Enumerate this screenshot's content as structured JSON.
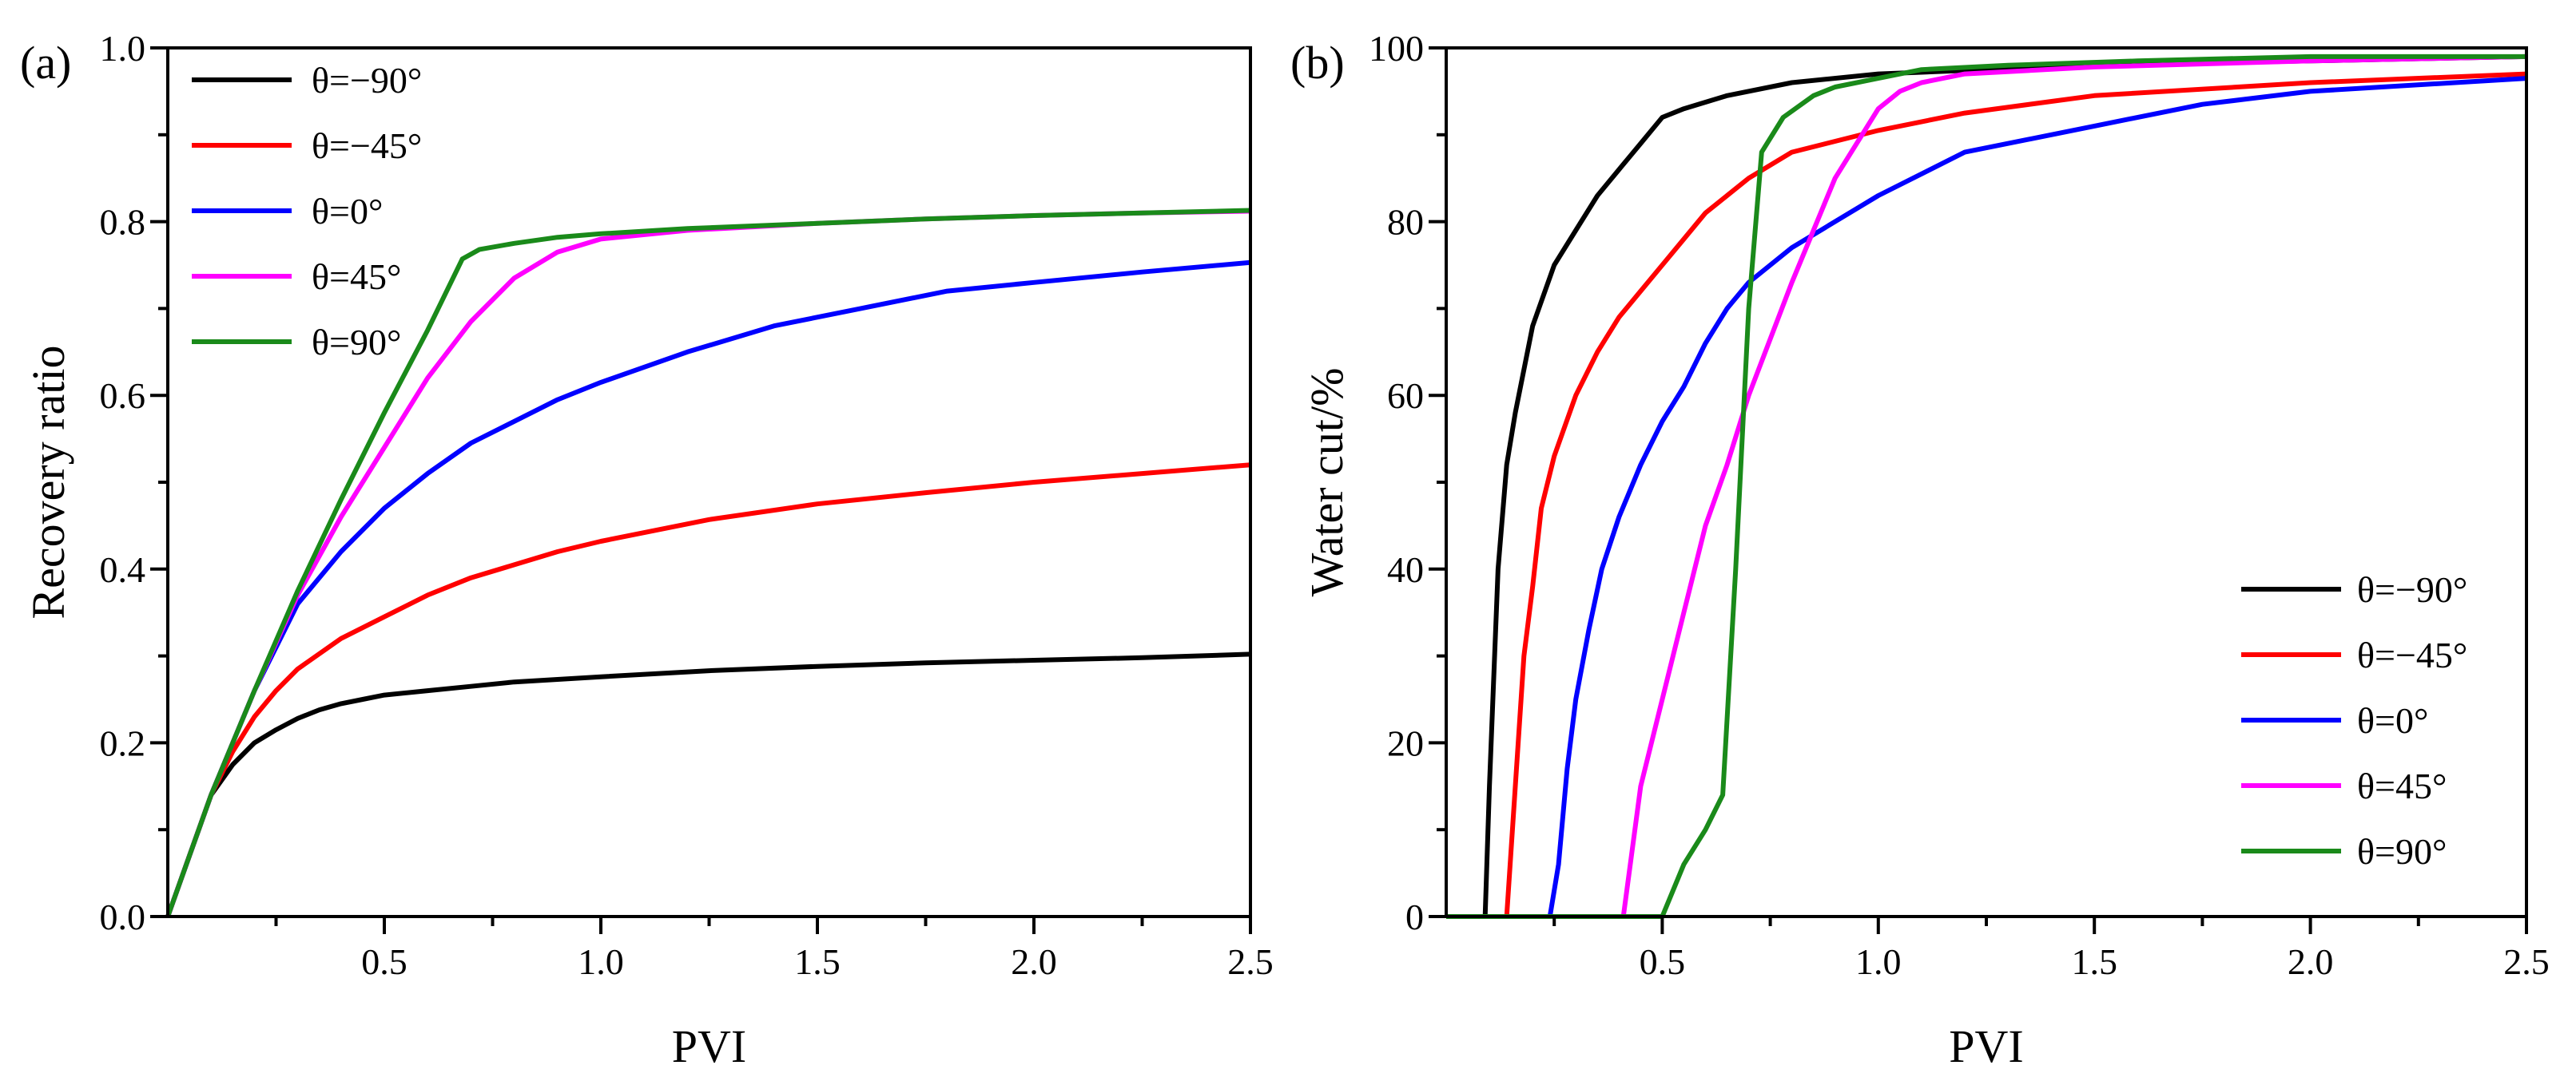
{
  "chart_data": [
    {
      "type": "line",
      "panel_label": "(a)",
      "xlabel": "PVI",
      "ylabel": "Recovery ratio",
      "xlim": [
        0,
        2.5
      ],
      "ylim": [
        0,
        1.0
      ],
      "xticks": [
        "0.5",
        "1.0",
        "1.5",
        "2.0",
        "2.5"
      ],
      "yticks": [
        "0.0",
        "0.2",
        "0.4",
        "0.6",
        "0.8",
        "1.0"
      ],
      "legend_position": "top-left",
      "series": [
        {
          "name": "θ=−90°",
          "color": "#000000",
          "x": [
            0,
            0.05,
            0.1,
            0.15,
            0.2,
            0.25,
            0.3,
            0.35,
            0.4,
            0.45,
            0.5,
            0.6,
            0.7,
            0.8,
            1.0,
            1.25,
            1.5,
            1.75,
            2.0,
            2.25,
            2.5
          ],
          "y": [
            0,
            0.07,
            0.14,
            0.175,
            0.2,
            0.215,
            0.228,
            0.238,
            0.245,
            0.25,
            0.255,
            0.26,
            0.265,
            0.27,
            0.276,
            0.283,
            0.288,
            0.292,
            0.295,
            0.298,
            0.302
          ]
        },
        {
          "name": "θ=−45°",
          "color": "#ff0000",
          "x": [
            0,
            0.05,
            0.1,
            0.15,
            0.2,
            0.25,
            0.3,
            0.4,
            0.5,
            0.6,
            0.7,
            0.8,
            0.9,
            1.0,
            1.25,
            1.5,
            1.75,
            2.0,
            2.25,
            2.5
          ],
          "y": [
            0,
            0.07,
            0.14,
            0.19,
            0.23,
            0.26,
            0.285,
            0.32,
            0.345,
            0.37,
            0.39,
            0.405,
            0.42,
            0.432,
            0.457,
            0.475,
            0.488,
            0.5,
            0.51,
            0.52
          ]
        },
        {
          "name": "θ=0°",
          "color": "#0000ff",
          "x": [
            0,
            0.1,
            0.2,
            0.3,
            0.4,
            0.5,
            0.6,
            0.7,
            0.8,
            0.9,
            1.0,
            1.2,
            1.4,
            1.6,
            1.8,
            2.0,
            2.25,
            2.5
          ],
          "y": [
            0,
            0.14,
            0.26,
            0.36,
            0.42,
            0.47,
            0.51,
            0.545,
            0.57,
            0.595,
            0.615,
            0.65,
            0.68,
            0.7,
            0.72,
            0.73,
            0.742,
            0.753
          ]
        },
        {
          "name": "θ=45°",
          "color": "#ff00ff",
          "x": [
            0,
            0.1,
            0.2,
            0.3,
            0.4,
            0.5,
            0.6,
            0.7,
            0.8,
            0.9,
            1.0,
            1.2,
            1.5,
            1.75,
            2.0,
            2.25,
            2.5
          ],
          "y": [
            0,
            0.14,
            0.26,
            0.37,
            0.46,
            0.54,
            0.62,
            0.685,
            0.735,
            0.765,
            0.78,
            0.79,
            0.798,
            0.803,
            0.807,
            0.81,
            0.812
          ]
        },
        {
          "name": "θ=90°",
          "color": "#1a8a1a",
          "x": [
            0,
            0.1,
            0.2,
            0.3,
            0.4,
            0.5,
            0.6,
            0.68,
            0.72,
            0.8,
            0.9,
            1.0,
            1.2,
            1.5,
            1.75,
            2.0,
            2.25,
            2.5
          ],
          "y": [
            0,
            0.14,
            0.26,
            0.375,
            0.48,
            0.58,
            0.675,
            0.757,
            0.768,
            0.775,
            0.782,
            0.786,
            0.792,
            0.798,
            0.803,
            0.807,
            0.81,
            0.813
          ]
        }
      ]
    },
    {
      "type": "line",
      "panel_label": "(b)",
      "xlabel": "PVI",
      "ylabel": "Water cut/%",
      "xlim": [
        0,
        2.5
      ],
      "ylim": [
        0,
        100
      ],
      "xticks": [
        "0.5",
        "1.0",
        "1.5",
        "2.0",
        "2.5"
      ],
      "yticks": [
        "0",
        "20",
        "40",
        "60",
        "80",
        "100"
      ],
      "legend_position": "bottom-right",
      "series": [
        {
          "name": "θ=−90°",
          "color": "#000000",
          "x": [
            0,
            0.09,
            0.1,
            0.12,
            0.14,
            0.16,
            0.2,
            0.25,
            0.3,
            0.35,
            0.4,
            0.45,
            0.5,
            0.55,
            0.65,
            0.8,
            1.0,
            1.25,
            1.5,
            2.0,
            2.5
          ],
          "y": [
            0,
            0,
            15,
            40,
            52,
            58,
            68,
            75,
            79,
            83,
            86,
            89,
            92,
            93,
            94.5,
            96,
            97,
            97.5,
            98,
            98.5,
            99
          ]
        },
        {
          "name": "θ=−45°",
          "color": "#ff0000",
          "x": [
            0,
            0.14,
            0.16,
            0.18,
            0.2,
            0.22,
            0.25,
            0.3,
            0.35,
            0.4,
            0.45,
            0.5,
            0.55,
            0.6,
            0.7,
            0.8,
            1.0,
            1.2,
            1.5,
            2.0,
            2.5
          ],
          "y": [
            0,
            0,
            15,
            30,
            38,
            47,
            53,
            60,
            65,
            69,
            72,
            75,
            78,
            81,
            85,
            88,
            90.5,
            92.5,
            94.5,
            96,
            97
          ]
        },
        {
          "name": "θ=0°",
          "color": "#0000ff",
          "x": [
            0,
            0.24,
            0.26,
            0.28,
            0.3,
            0.33,
            0.36,
            0.4,
            0.45,
            0.5,
            0.55,
            0.6,
            0.65,
            0.7,
            0.8,
            0.9,
            1.0,
            1.2,
            1.5,
            1.75,
            2.0,
            2.5
          ],
          "y": [
            0,
            0,
            6,
            17,
            25,
            33,
            40,
            46,
            52,
            57,
            61,
            66,
            70,
            73,
            77,
            80,
            83,
            88,
            91,
            93.5,
            95,
            96.5
          ]
        },
        {
          "name": "θ=45°",
          "color": "#ff00ff",
          "x": [
            0,
            0.41,
            0.45,
            0.5,
            0.55,
            0.6,
            0.65,
            0.7,
            0.8,
            0.9,
            1.0,
            1.05,
            1.1,
            1.2,
            1.5,
            2.0,
            2.5
          ],
          "y": [
            0,
            0,
            15,
            25,
            35,
            45,
            52,
            60,
            73,
            85,
            93,
            95,
            96,
            97,
            97.8,
            98.5,
            99
          ]
        },
        {
          "name": "θ=90°",
          "color": "#1a8a1a",
          "x": [
            0,
            0.5,
            0.55,
            0.6,
            0.64,
            0.67,
            0.7,
            0.73,
            0.78,
            0.85,
            0.9,
            1.0,
            1.1,
            1.3,
            1.6,
            2.0,
            2.5
          ],
          "y": [
            0,
            0,
            6,
            10,
            14,
            40,
            70,
            88,
            92,
            94.5,
            95.5,
            96.5,
            97.5,
            98,
            98.5,
            99,
            99
          ]
        }
      ]
    }
  ]
}
